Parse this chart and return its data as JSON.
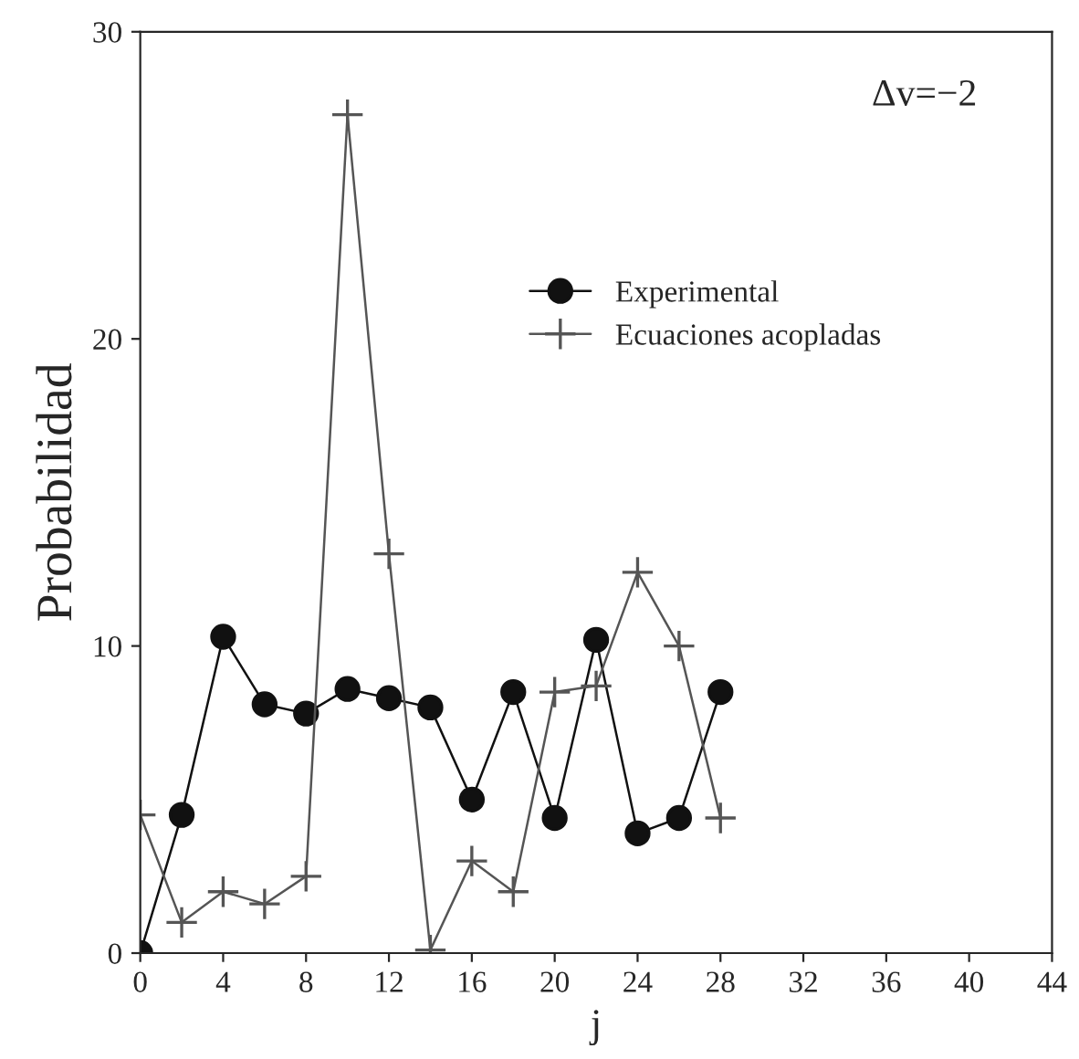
{
  "chart_data": {
    "type": "line",
    "xlabel": "j",
    "ylabel": "Probabilidad",
    "annotations": [
      "Δv=−2"
    ],
    "xlim": [
      0,
      44
    ],
    "xticks": [
      0,
      4,
      8,
      12,
      16,
      20,
      24,
      28,
      32,
      36,
      40,
      44
    ],
    "ylim": [
      0,
      30
    ],
    "yticks": [
      0,
      10,
      20,
      30
    ],
    "grid": false,
    "legend": "top",
    "series": [
      {
        "name": "Experimental",
        "color": "#111111",
        "marker": "circle",
        "x": [
          0,
          2,
          4,
          6,
          8,
          10,
          12,
          14,
          16,
          18,
          20,
          22,
          24,
          26,
          28
        ],
        "values": [
          0,
          4.5,
          10.3,
          8.1,
          7.8,
          8.6,
          8.3,
          8.0,
          5.0,
          8.5,
          4.4,
          10.2,
          3.9,
          4.4,
          8.5
        ]
      },
      {
        "name": "Ecuaciones acopladas",
        "color": "#555555",
        "marker": "cross",
        "x": [
          0,
          2,
          4,
          6,
          8,
          10,
          12,
          14,
          16,
          18,
          20,
          22,
          24,
          26,
          28
        ],
        "values": [
          4.5,
          1.0,
          2.0,
          1.6,
          2.5,
          27.3,
          13.0,
          0.1,
          3.0,
          2.0,
          8.5,
          8.7,
          12.4,
          10.0,
          4.4
        ]
      }
    ]
  }
}
